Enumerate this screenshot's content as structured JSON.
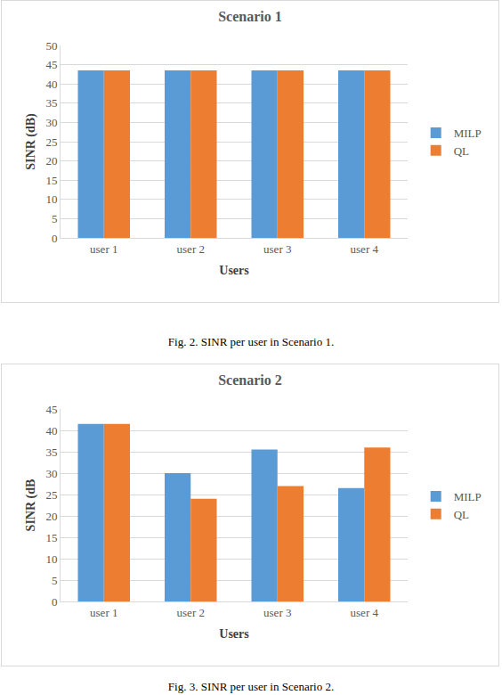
{
  "chart_data": [
    {
      "type": "bar",
      "title": "Scenario 1",
      "caption": "Fig. 2.   SINR per user in Scenario 1.",
      "x_label": "Users",
      "y_label": "SINR (dB)",
      "categories": [
        "user 1",
        "user 2",
        "user 3",
        "user 4"
      ],
      "series": [
        {
          "name": "MILP",
          "color": "#5b9bd5",
          "values": [
            43.5,
            43.5,
            43.5,
            43.5
          ]
        },
        {
          "name": "QL",
          "color": "#ed7d31",
          "values": [
            43.5,
            43.5,
            43.5,
            43.5
          ]
        }
      ],
      "ylim": [
        0,
        50
      ],
      "yticks": [
        0,
        5,
        10,
        15,
        20,
        25,
        30,
        35,
        40,
        45,
        50
      ],
      "grid": true,
      "legend": "right"
    },
    {
      "type": "bar",
      "title": "Scenario 2",
      "caption": "Fig. 3.   SINR per user in Scenario 2.",
      "x_label": "Users",
      "y_label": "SINR (dB",
      "categories": [
        "user 1",
        "user 2",
        "user 3",
        "user 4"
      ],
      "series": [
        {
          "name": "MILP",
          "color": "#5b9bd5",
          "values": [
            41.5,
            30,
            35.5,
            26.5
          ]
        },
        {
          "name": "QL",
          "color": "#ed7d31",
          "values": [
            41.5,
            24,
            27,
            36
          ]
        }
      ],
      "ylim": [
        0,
        45
      ],
      "yticks": [
        0,
        5,
        10,
        15,
        20,
        25,
        30,
        35,
        40,
        45
      ],
      "grid": true,
      "legend": "right"
    }
  ]
}
